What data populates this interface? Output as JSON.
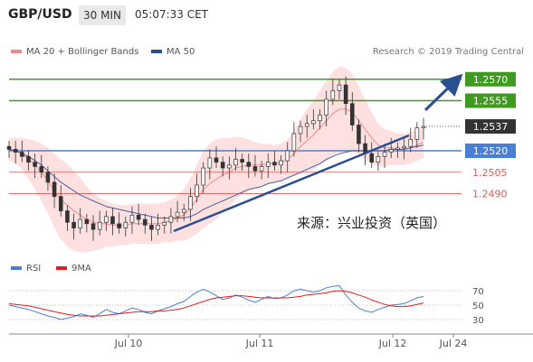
{
  "header": {
    "symbol": "GBP/USD",
    "timeframe": "30 MIN",
    "time": "05:07:33 CET"
  },
  "legend": {
    "ma20": "MA 20 + Bollinger Bands",
    "ma50": "MA 50",
    "credit": "Research © 2019 Trading Central"
  },
  "colors": {
    "green": "#3f9a1f",
    "blue": "#4a7fd6",
    "red": "#e05a5a",
    "dark_blue": "#2a4f8f",
    "bb_fill": "#fdd6d6"
  },
  "annotation_text": "来源：兴业投资（英国）",
  "rsi": {
    "label": "RSI",
    "ma_label": "9MA",
    "levels": [
      "70",
      "50",
      "30"
    ]
  },
  "chart_data": {
    "type": "candlestick",
    "price_range": [
      1.2455,
      1.2585
    ],
    "levels": [
      {
        "value": "1.2570",
        "kind": "resistance",
        "color": "green"
      },
      {
        "value": "1.2555",
        "kind": "resistance",
        "color": "green"
      },
      {
        "value": "1.2537",
        "kind": "current",
        "color": "dark"
      },
      {
        "value": "1.2520",
        "kind": "support",
        "color": "blue"
      },
      {
        "value": "1.2505",
        "kind": "support",
        "color": "red"
      },
      {
        "value": "1.2490",
        "kind": "support",
        "color": "red"
      }
    ],
    "x_ticks": [
      "Jul 10",
      "Jul 11",
      "Jul 12",
      "Jul 24"
    ],
    "closes": [
      1.2521,
      1.2519,
      1.2516,
      1.2512,
      1.2509,
      1.2505,
      1.2498,
      1.2488,
      1.2478,
      1.247,
      1.2466,
      1.2472,
      1.2469,
      1.2465,
      1.247,
      1.2474,
      1.2469,
      1.2466,
      1.247,
      1.2475,
      1.2472,
      1.2468,
      1.2465,
      1.2468,
      1.247,
      1.2474,
      1.2477,
      1.2479,
      1.2488,
      1.2496,
      1.2508,
      1.2515,
      1.2512,
      1.2508,
      1.251,
      1.2514,
      1.2512,
      1.2509,
      1.2506,
      1.2509,
      1.2512,
      1.251,
      1.2513,
      1.252,
      1.2532,
      1.2537,
      1.2539,
      1.2541,
      1.2545,
      1.2556,
      1.2562,
      1.2566,
      1.2553,
      1.2538,
      1.2525,
      1.2518,
      1.2512,
      1.2516,
      1.2519,
      1.2521,
      1.2522,
      1.2523,
      1.2528,
      1.2536,
      1.2537
    ],
    "ma20": [
      1.2521,
      1.252,
      1.2518,
      1.2514,
      1.251,
      1.2505,
      1.2499,
      1.2492,
      1.2486,
      1.2482,
      1.2478,
      1.2475,
      1.2472,
      1.247,
      1.2469,
      1.2469,
      1.2468,
      1.2468,
      1.2468,
      1.2469,
      1.2469,
      1.2469,
      1.2469,
      1.2469,
      1.247,
      1.2471,
      1.2473,
      1.2475,
      1.248,
      1.2486,
      1.2493,
      1.2497,
      1.25,
      1.2503,
      1.2505,
      1.2508,
      1.2509,
      1.251,
      1.251,
      1.251,
      1.2511,
      1.2511,
      1.2512,
      1.2514,
      1.2518,
      1.2523,
      1.2527,
      1.2531,
      1.2536,
      1.2541,
      1.2546,
      1.2549,
      1.2549,
      1.2547,
      1.2541,
      1.2535,
      1.2529,
      1.2524,
      1.2522,
      1.2522,
      1.2521,
      1.2521,
      1.2522,
      1.2524,
      1.2526
    ],
    "ma50": [
      1.2521,
      1.252,
      1.2518,
      1.2516,
      1.2513,
      1.251,
      1.2506,
      1.2502,
      1.2498,
      1.2495,
      1.2492,
      1.2489,
      1.2487,
      1.2485,
      1.2483,
      1.2481,
      1.248,
      1.2479,
      1.2478,
      1.2477,
      1.2476,
      1.2475,
      1.2474,
      1.2473,
      1.2473,
      1.2473,
      1.2473,
      1.2473,
      1.2474,
      1.2476,
      1.2479,
      1.2481,
      1.2483,
      1.2485,
      1.2487,
      1.2489,
      1.2491,
      1.2493,
      1.2494,
      1.2495,
      1.2497,
      1.2498,
      1.2499,
      1.2501,
      1.2503,
      1.2505,
      1.2507,
      1.2509,
      1.2511,
      1.2514,
      1.2516,
      1.2518,
      1.2519,
      1.252,
      1.252,
      1.252,
      1.252,
      1.252,
      1.252,
      1.2521,
      1.2521,
      1.2521,
      1.2522,
      1.2523,
      1.2524
    ],
    "bb_width": [
      0.0008,
      0.0009,
      0.0011,
      0.0014,
      0.0017,
      0.002,
      0.0023,
      0.0026,
      0.0028,
      0.0029,
      0.0028,
      0.0026,
      0.0023,
      0.002,
      0.0018,
      0.0016,
      0.0015,
      0.0014,
      0.0014,
      0.0014,
      0.0014,
      0.0014,
      0.0014,
      0.0014,
      0.0014,
      0.0015,
      0.0016,
      0.0018,
      0.0021,
      0.0024,
      0.0027,
      0.0028,
      0.0028,
      0.0026,
      0.0024,
      0.0022,
      0.002,
      0.0018,
      0.0016,
      0.0015,
      0.0014,
      0.0013,
      0.0013,
      0.0014,
      0.0016,
      0.0019,
      0.0022,
      0.0024,
      0.0026,
      0.0028,
      0.0029,
      0.003,
      0.0029,
      0.0027,
      0.0024,
      0.0021,
      0.0018,
      0.0015,
      0.0013,
      0.0012,
      0.0011,
      0.0011,
      0.0011,
      0.0011,
      0.0011
    ],
    "rsi": [
      50,
      48,
      46,
      44,
      41,
      38,
      35,
      33,
      30,
      32,
      34,
      38,
      36,
      33,
      38,
      44,
      40,
      38,
      42,
      46,
      44,
      40,
      38,
      42,
      45,
      48,
      52,
      55,
      62,
      68,
      72,
      68,
      63,
      58,
      60,
      64,
      61,
      57,
      54,
      58,
      62,
      59,
      60,
      64,
      70,
      72,
      70,
      68,
      70,
      74,
      76,
      77,
      64,
      54,
      46,
      42,
      40,
      44,
      47,
      50,
      51,
      52,
      56,
      60,
      62
    ],
    "rsi_ma": [
      52,
      51,
      50,
      49,
      47,
      45,
      43,
      41,
      39,
      37,
      36,
      35,
      35,
      35,
      35,
      36,
      37,
      38,
      39,
      40,
      41,
      41,
      41,
      42,
      42,
      43,
      44,
      46,
      49,
      52,
      55,
      58,
      60,
      61,
      62,
      63,
      63,
      62,
      61,
      60,
      60,
      60,
      60,
      60,
      61,
      62,
      64,
      65,
      66,
      67,
      69,
      70,
      69,
      67,
      64,
      61,
      57,
      54,
      51,
      49,
      48,
      48,
      49,
      51,
      53
    ]
  }
}
